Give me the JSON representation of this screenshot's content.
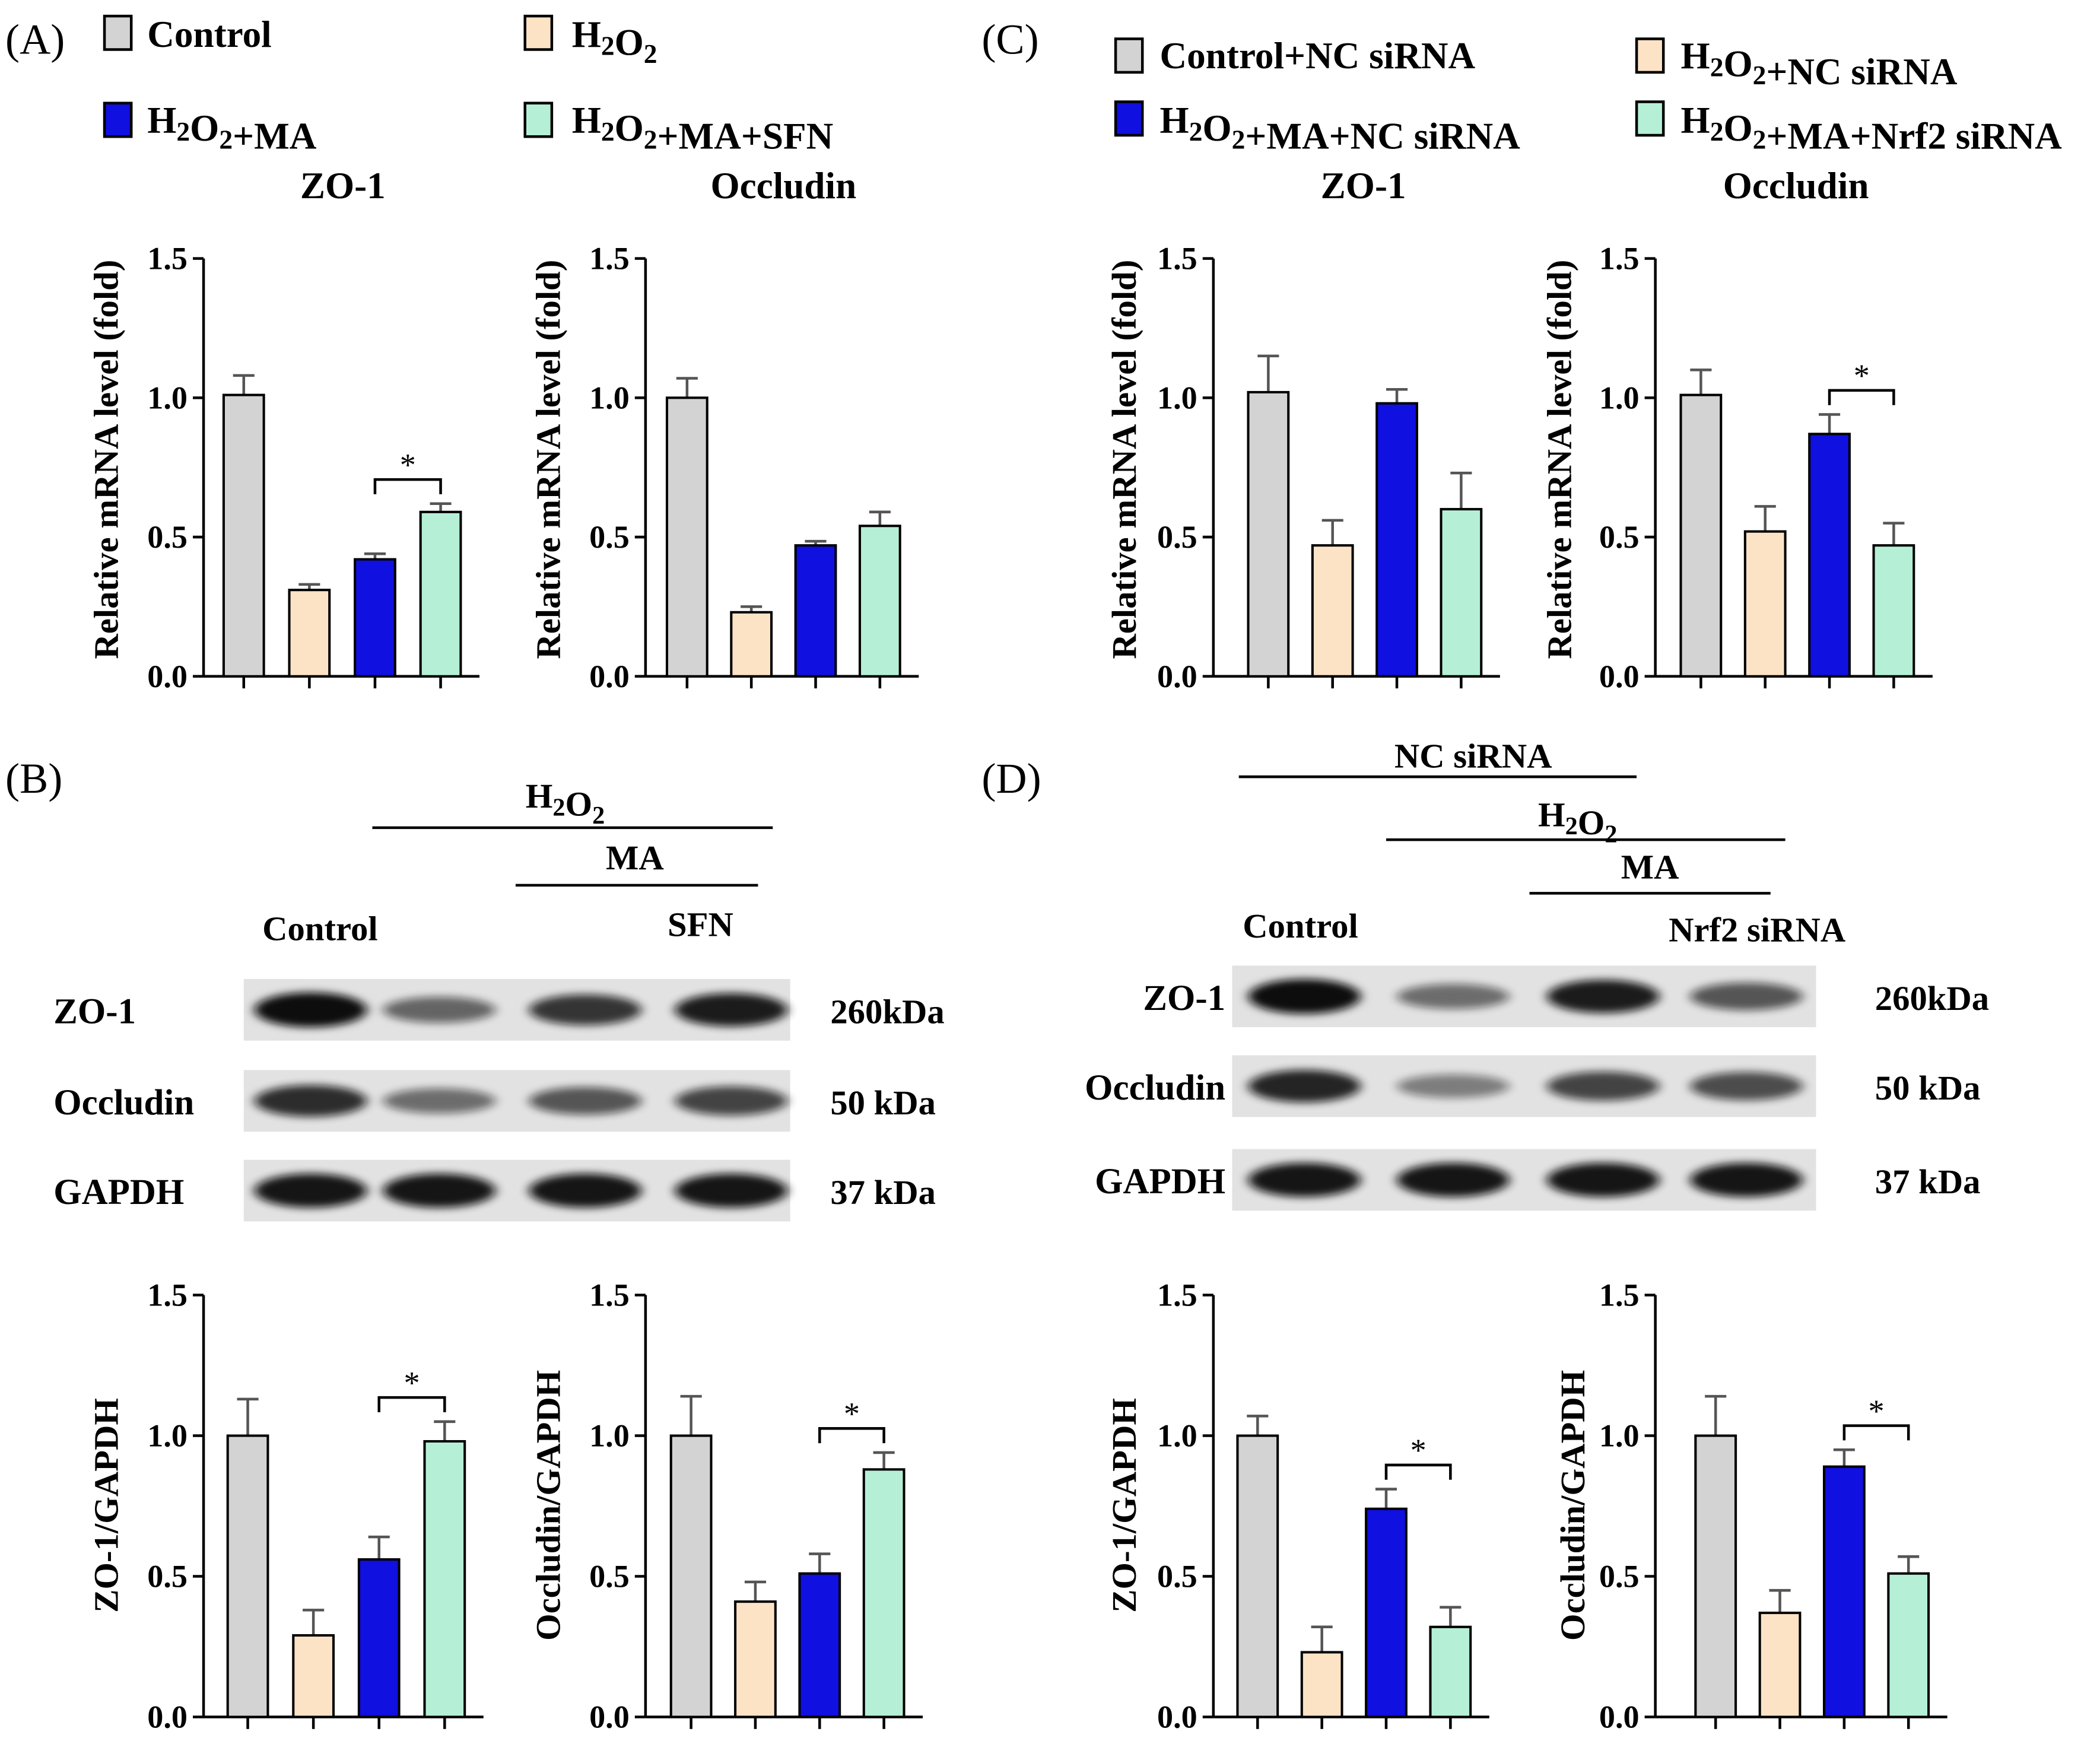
{
  "panel_labels": {
    "a": "(A)",
    "b": "(B)",
    "c": "(C)",
    "d": "(D)"
  },
  "legend_ab": [
    "Control",
    "H2O2",
    "H2O2+MA",
    "H2O2+MA+SFN"
  ],
  "legend_cd": [
    "Control+NC siRNA",
    "H2O2+NC siRNA",
    "H2O2+MA+NC siRNA",
    "H2O2+MA+Nrf2 siRNA"
  ],
  "colors": {
    "control": "#d3d3d3",
    "h2o2": "#fde3c6",
    "ma": "#1010e0",
    "last": "#b5f0d6",
    "blot_bg": "#e2e2e2",
    "band": "#0a0a0a"
  },
  "blot_b": {
    "h2o2_label": "H2O2",
    "ma_label": "MA",
    "sfn_label": "SFN",
    "control_label": "Control",
    "rows": [
      {
        "protein": "ZO-1",
        "kda": "260kDa",
        "intensities": [
          1.0,
          0.45,
          0.75,
          0.9
        ]
      },
      {
        "protein": "Occludin",
        "kda": "50 kDa",
        "intensities": [
          0.8,
          0.4,
          0.55,
          0.65
        ]
      },
      {
        "protein": "GAPDH",
        "kda": "37 kDa",
        "intensities": [
          0.95,
          0.95,
          0.95,
          0.95
        ]
      }
    ]
  },
  "blot_d": {
    "nc_label": "NC siRNA",
    "h2o2_label": "H2O2",
    "ma_label": "MA",
    "nrf2_label": "Nrf2 siRNA",
    "control_label": "Control",
    "rows": [
      {
        "protein": "ZO-1",
        "kda": "260kDa",
        "intensities": [
          1.0,
          0.4,
          0.9,
          0.55
        ]
      },
      {
        "protein": "Occludin",
        "kda": "50 kDa",
        "intensities": [
          0.85,
          0.3,
          0.65,
          0.6
        ]
      },
      {
        "protein": "GAPDH",
        "kda": "37 kDa",
        "intensities": [
          0.95,
          0.95,
          0.95,
          0.95
        ]
      }
    ]
  },
  "chart_data": [
    {
      "id": "a-zo1",
      "type": "bar",
      "title": "ZO-1",
      "xlabel": "",
      "ylabel": "Relative mRNA level (fold)",
      "categories": [
        "Control",
        "H2O2",
        "H2O2+MA",
        "H2O2+MA+SFN"
      ],
      "values": [
        1.01,
        0.31,
        0.42,
        0.59
      ],
      "errors": [
        0.07,
        0.02,
        0.02,
        0.03
      ],
      "ylim": [
        0,
        1.5
      ],
      "yticks": [
        "0.0",
        "0.5",
        "1.0",
        "1.5"
      ],
      "significance": [
        {
          "from": 2,
          "to": 3,
          "label": "*"
        }
      ]
    },
    {
      "id": "a-occ",
      "type": "bar",
      "title": "Occludin",
      "xlabel": "",
      "ylabel": "Relative mRNA level (fold)",
      "categories": [
        "Control",
        "H2O2",
        "H2O2+MA",
        "H2O2+MA+SFN"
      ],
      "values": [
        1.0,
        0.23,
        0.47,
        0.54
      ],
      "errors": [
        0.07,
        0.02,
        0.015,
        0.05
      ],
      "ylim": [
        0,
        1.5
      ],
      "yticks": [
        "0.0",
        "0.5",
        "1.0",
        "1.5"
      ],
      "significance": []
    },
    {
      "id": "c-zo1",
      "type": "bar",
      "title": "ZO-1",
      "xlabel": "",
      "ylabel": "Relative mRNA level (fold)",
      "categories": [
        "Control+NC siRNA",
        "H2O2+NC siRNA",
        "H2O2+MA+NC siRNA",
        "H2O2+MA+Nrf2 siRNA"
      ],
      "values": [
        1.02,
        0.47,
        0.98,
        0.6
      ],
      "errors": [
        0.13,
        0.09,
        0.05,
        0.13
      ],
      "ylim": [
        0,
        1.5
      ],
      "yticks": [
        "0.0",
        "0.5",
        "1.0",
        "1.5"
      ],
      "significance": []
    },
    {
      "id": "c-occ",
      "type": "bar",
      "title": "Occludin",
      "xlabel": "",
      "ylabel": "Relative mRNA level (fold)",
      "categories": [
        "Control+NC siRNA",
        "H2O2+NC siRNA",
        "H2O2+MA+NC siRNA",
        "H2O2+MA+Nrf2 siRNA"
      ],
      "values": [
        1.01,
        0.52,
        0.87,
        0.47
      ],
      "errors": [
        0.09,
        0.09,
        0.07,
        0.08
      ],
      "ylim": [
        0,
        1.5
      ],
      "yticks": [
        "0.0",
        "0.5",
        "1.0",
        "1.5"
      ],
      "significance": [
        {
          "from": 2,
          "to": 3,
          "label": "*"
        }
      ]
    },
    {
      "id": "b-zo1",
      "type": "bar",
      "title": "",
      "xlabel": "",
      "ylabel": "ZO-1/GAPDH",
      "categories": [
        "Control",
        "H2O2",
        "H2O2+MA",
        "H2O2+MA+SFN"
      ],
      "values": [
        1.0,
        0.29,
        0.56,
        0.98
      ],
      "errors": [
        0.13,
        0.09,
        0.08,
        0.07
      ],
      "ylim": [
        0,
        1.5
      ],
      "yticks": [
        "0.0",
        "0.5",
        "1.0",
        "1.5"
      ],
      "significance": [
        {
          "from": 2,
          "to": 3,
          "label": "*"
        }
      ]
    },
    {
      "id": "b-occ",
      "type": "bar",
      "title": "",
      "xlabel": "",
      "ylabel": "Occludin/GAPDH",
      "categories": [
        "Control",
        "H2O2",
        "H2O2+MA",
        "H2O2+MA+SFN"
      ],
      "values": [
        1.0,
        0.41,
        0.51,
        0.88
      ],
      "errors": [
        0.14,
        0.07,
        0.07,
        0.06
      ],
      "ylim": [
        0,
        1.5
      ],
      "yticks": [
        "0.0",
        "0.5",
        "1.0",
        "1.5"
      ],
      "significance": [
        {
          "from": 2,
          "to": 3,
          "label": "*"
        }
      ]
    },
    {
      "id": "d-zo1",
      "type": "bar",
      "title": "",
      "xlabel": "",
      "ylabel": "ZO-1/GAPDH",
      "categories": [
        "Control+NC siRNA",
        "H2O2+NC siRNA",
        "H2O2+MA+NC siRNA",
        "H2O2+MA+Nrf2 siRNA"
      ],
      "values": [
        1.0,
        0.23,
        0.74,
        0.32
      ],
      "errors": [
        0.07,
        0.09,
        0.07,
        0.07
      ],
      "ylim": [
        0,
        1.5
      ],
      "yticks": [
        "0.0",
        "0.5",
        "1.0",
        "1.5"
      ],
      "significance": [
        {
          "from": 2,
          "to": 3,
          "label": "*"
        }
      ]
    },
    {
      "id": "d-occ",
      "type": "bar",
      "title": "",
      "xlabel": "",
      "ylabel": "Occludin/GAPDH",
      "categories": [
        "Control+NC siRNA",
        "H2O2+NC siRNA",
        "H2O2+MA+NC siRNA",
        "H2O2+MA+Nrf2 siRNA"
      ],
      "values": [
        1.0,
        0.37,
        0.89,
        0.51
      ],
      "errors": [
        0.14,
        0.08,
        0.06,
        0.06
      ],
      "ylim": [
        0,
        1.5
      ],
      "yticks": [
        "0.0",
        "0.5",
        "1.0",
        "1.5"
      ],
      "significance": [
        {
          "from": 2,
          "to": 3,
          "label": "*"
        }
      ]
    }
  ]
}
